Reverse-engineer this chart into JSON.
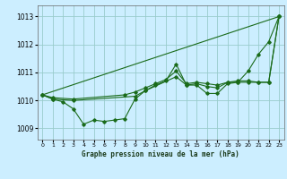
{
  "title": "Graphe pression niveau de la mer (hPa)",
  "bg_color": "#cceeff",
  "grid_color": "#99cccc",
  "line_color": "#1a6b1a",
  "xlim": [
    -0.5,
    23.5
  ],
  "ylim": [
    1008.6,
    1013.4
  ],
  "yticks": [
    1009,
    1010,
    1011,
    1012,
    1013
  ],
  "xticks": [
    0,
    1,
    2,
    3,
    4,
    5,
    6,
    7,
    8,
    9,
    10,
    11,
    12,
    13,
    14,
    15,
    16,
    17,
    18,
    19,
    20,
    21,
    22,
    23
  ],
  "series_straight": [
    [
      0,
      1010.2
    ],
    [
      23,
      1013.0
    ]
  ],
  "series_zigzag": [
    [
      0,
      1010.2
    ],
    [
      1,
      1010.05
    ],
    [
      2,
      1009.95
    ],
    [
      3,
      1009.7
    ],
    [
      4,
      1009.15
    ],
    [
      5,
      1009.3
    ],
    [
      6,
      1009.25
    ],
    [
      7,
      1009.3
    ],
    [
      8,
      1009.35
    ],
    [
      9,
      1010.05
    ],
    [
      10,
      1010.35
    ],
    [
      11,
      1010.55
    ],
    [
      12,
      1010.7
    ],
    [
      13,
      1011.3
    ],
    [
      14,
      1010.55
    ],
    [
      15,
      1010.55
    ],
    [
      16,
      1010.25
    ],
    [
      17,
      1010.25
    ],
    [
      18,
      1010.6
    ],
    [
      19,
      1010.65
    ],
    [
      20,
      1011.05
    ],
    [
      21,
      1011.65
    ],
    [
      22,
      1012.1
    ],
    [
      23,
      1013.0
    ]
  ],
  "series_upper": [
    [
      0,
      1010.2
    ],
    [
      1,
      1010.1
    ],
    [
      3,
      1010.05
    ],
    [
      8,
      1010.2
    ],
    [
      9,
      1010.3
    ],
    [
      10,
      1010.45
    ],
    [
      11,
      1010.6
    ],
    [
      12,
      1010.75
    ],
    [
      13,
      1011.05
    ],
    [
      14,
      1010.6
    ],
    [
      15,
      1010.65
    ],
    [
      16,
      1010.6
    ],
    [
      17,
      1010.55
    ],
    [
      18,
      1010.65
    ],
    [
      19,
      1010.7
    ],
    [
      20,
      1010.7
    ],
    [
      21,
      1010.65
    ],
    [
      22,
      1010.65
    ],
    [
      23,
      1013.0
    ]
  ],
  "series_mid": [
    [
      0,
      1010.2
    ],
    [
      1,
      1010.05
    ],
    [
      3,
      1010.0
    ],
    [
      9,
      1010.15
    ],
    [
      10,
      1010.35
    ],
    [
      13,
      1010.85
    ],
    [
      14,
      1010.55
    ],
    [
      15,
      1010.6
    ],
    [
      16,
      1010.5
    ],
    [
      17,
      1010.45
    ],
    [
      18,
      1010.65
    ],
    [
      19,
      1010.65
    ],
    [
      20,
      1010.65
    ],
    [
      21,
      1010.65
    ],
    [
      22,
      1010.65
    ],
    [
      23,
      1013.0
    ]
  ]
}
